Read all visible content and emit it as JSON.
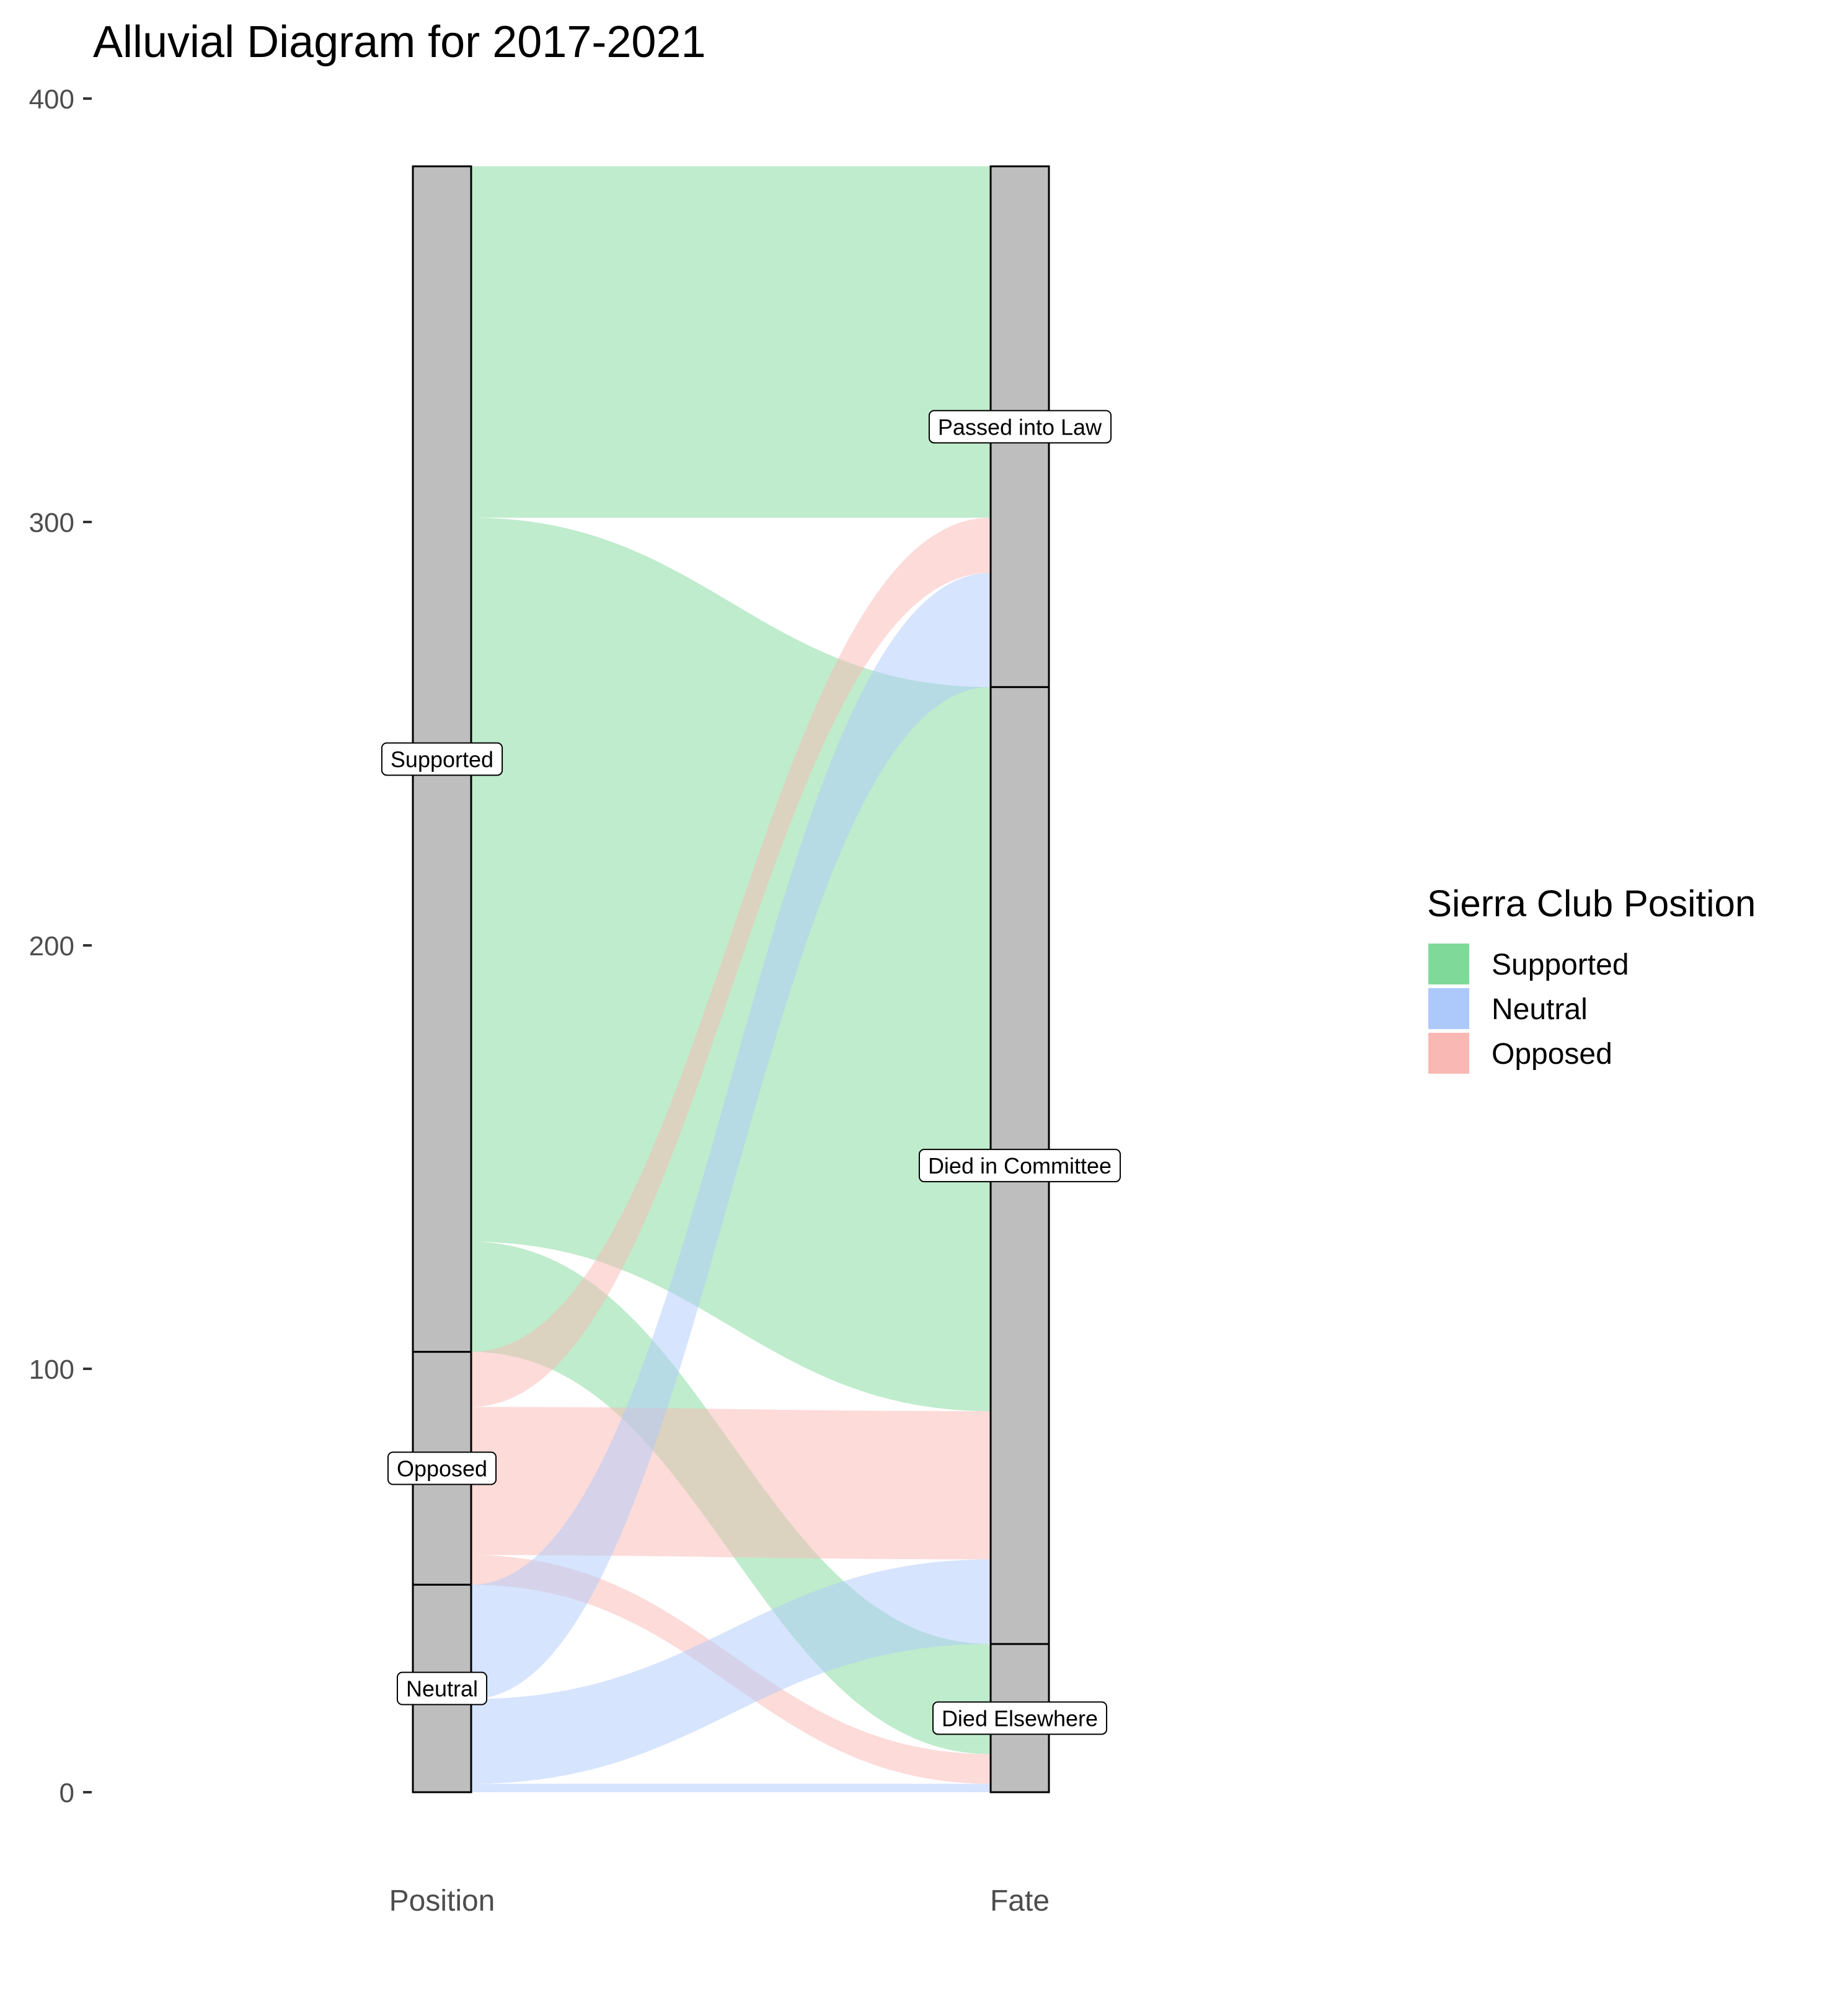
{
  "chart_data": {
    "type": "alluvial",
    "title": "Alluvial Diagram for 2017-2021",
    "axes": [
      "Position",
      "Fate"
    ],
    "yticks": [
      0,
      100,
      200,
      300,
      400
    ],
    "ylim": [
      0,
      400
    ],
    "legend": {
      "title": "Sierra Club Position",
      "placement": "right",
      "entries": [
        {
          "name": "Supported",
          "color": "#7fda9a"
        },
        {
          "name": "Neutral",
          "color": "#adc9fc"
        },
        {
          "name": "Opposed",
          "color": "#f9b8b4"
        }
      ]
    },
    "left_strata": [
      {
        "label": "Supported",
        "value": 280
      },
      {
        "label": "Opposed",
        "value": 55
      },
      {
        "label": "Neutral",
        "value": 49
      }
    ],
    "right_strata": [
      {
        "label": "Passed into Law",
        "value": 123
      },
      {
        "label": "Died in Committee",
        "value": 226
      },
      {
        "label": "Died Elsewhere",
        "value": 35
      }
    ],
    "flows": [
      {
        "from": "Supported",
        "to": "Passed into Law",
        "value": 83
      },
      {
        "from": "Supported",
        "to": "Died in Committee",
        "value": 171
      },
      {
        "from": "Supported",
        "to": "Died Elsewhere",
        "value": 26
      },
      {
        "from": "Opposed",
        "to": "Passed into Law",
        "value": 13
      },
      {
        "from": "Opposed",
        "to": "Died in Committee",
        "value": 35
      },
      {
        "from": "Opposed",
        "to": "Died Elsewhere",
        "value": 7
      },
      {
        "from": "Neutral",
        "to": "Passed into Law",
        "value": 27
      },
      {
        "from": "Neutral",
        "to": "Died in Committee",
        "value": 20
      },
      {
        "from": "Neutral",
        "to": "Died Elsewhere",
        "value": 2
      }
    ]
  }
}
